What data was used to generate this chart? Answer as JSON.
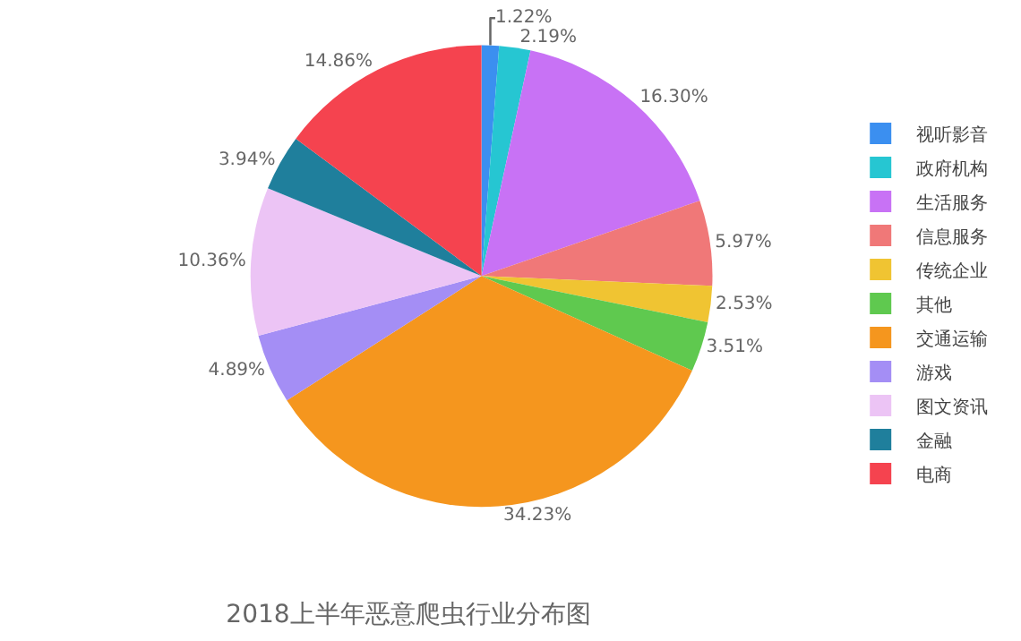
{
  "chart_data": {
    "type": "pie",
    "title": "2018上半年恶意爬虫行业分布图",
    "categories": [
      "视听影音",
      "政府机构",
      "生活服务",
      "信息服务",
      "传统企业",
      "其他",
      "交通运输",
      "游戏",
      "图文资讯",
      "金融",
      "电商"
    ],
    "values": [
      1.22,
      2.19,
      16.3,
      5.97,
      2.53,
      3.51,
      34.23,
      4.89,
      10.36,
      3.94,
      14.86
    ],
    "value_labels": [
      "1.22%",
      "2.19%",
      "16.30%",
      "5.97%",
      "2.53%",
      "3.51%",
      "34.23%",
      "4.89%",
      "10.36%",
      "3.94%",
      "14.86%"
    ],
    "colors": [
      "#3b8ff0",
      "#26c6d2",
      "#c872f5",
      "#f07878",
      "#f0c432",
      "#5fc94f",
      "#f5961e",
      "#a48ef5",
      "#ecc4f5",
      "#1f7f9c",
      "#f5434f"
    ],
    "legend": "right"
  }
}
